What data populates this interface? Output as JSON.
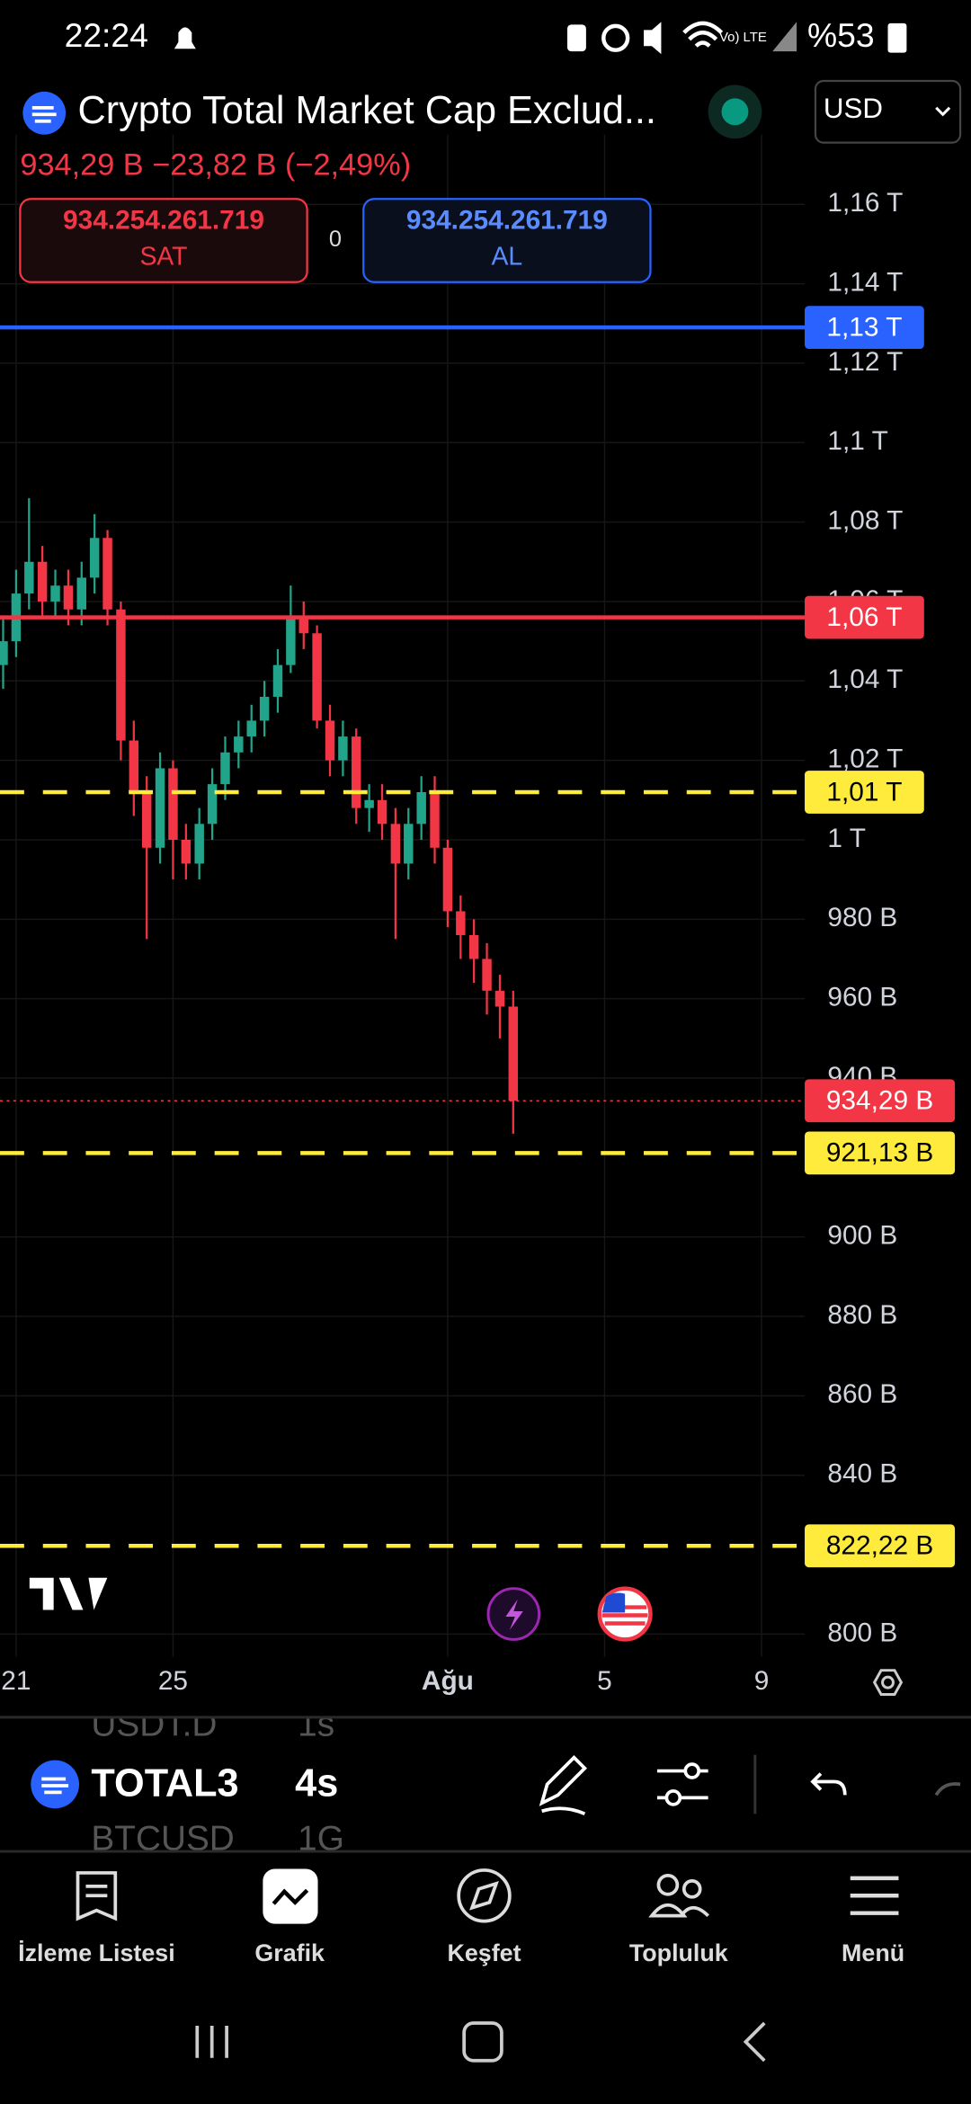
{
  "status_bar": {
    "time": "22:24",
    "battery": "%53"
  },
  "header": {
    "title": "Crypto Total Market Cap Exclud...",
    "price_change": "934,29 B  −23,82 B (−2,49%)",
    "currency": "USD"
  },
  "order": {
    "sell_price": "934.254.261.719",
    "sell_label": "SAT",
    "quantity": "0",
    "buy_price": "934.254.261.719",
    "buy_label": "AL"
  },
  "chart_data": {
    "type": "candlestick",
    "xlim": [
      20.59,
      41.1
    ],
    "xticks": [
      21,
      25,
      {
        "value": 32,
        "label": "Ağu"
      },
      {
        "value": 36,
        "label": "5"
      },
      {
        "value": 40,
        "label": "9"
      }
    ],
    "ylim": [
      800,
      1160
    ],
    "yticks": [
      {
        "value": 1160,
        "label": "1,16 T"
      },
      {
        "value": 1140,
        "label": "1,14 T"
      },
      {
        "value": 1120,
        "label": "1,12 T"
      },
      {
        "value": 1100,
        "label": "1,1 T"
      },
      {
        "value": 1080,
        "label": "1,08 T"
      },
      {
        "value": 1060,
        "label": "1,06 T"
      },
      {
        "value": 1040,
        "label": "1,04 T"
      },
      {
        "value": 1020,
        "label": "1,02 T"
      },
      {
        "value": 1000,
        "label": "1 T"
      },
      {
        "value": 980,
        "label": "980 B"
      },
      {
        "value": 960,
        "label": "960 B"
      },
      {
        "value": 940,
        "label": "940 B"
      },
      {
        "value": 900,
        "label": "900 B"
      },
      {
        "value": 880,
        "label": "880 B"
      },
      {
        "value": 860,
        "label": "860 B"
      },
      {
        "value": 840,
        "label": "840 B"
      },
      {
        "value": 800,
        "label": "800 B"
      }
    ],
    "grid": true,
    "up_color": "#22a48a",
    "down_color": "#f23645",
    "x": [
      20.67,
      21,
      21.33,
      21.67,
      22,
      22.33,
      22.67,
      23,
      23.33,
      23.67,
      24,
      24.33,
      24.67,
      25,
      25.33,
      25.67,
      26,
      26.33,
      26.67,
      27,
      27.33,
      27.67,
      28,
      28.33,
      28.67,
      29,
      29.33,
      29.67,
      30,
      30.33,
      30.67,
      31,
      31.33,
      31.67,
      32,
      32.33,
      32.67,
      33,
      33.33,
      33.67
    ],
    "open": [
      1044,
      1050,
      1062,
      1070,
      1060,
      1064,
      1058,
      1066,
      1076,
      1058,
      1025,
      1012,
      998,
      1018,
      1000,
      994,
      1004,
      1014,
      1022,
      1026,
      1030,
      1036,
      1044,
      1056,
      1052,
      1030,
      1020,
      1026,
      1008,
      1010,
      1004,
      994,
      1004,
      1012,
      998,
      982,
      976,
      970,
      962,
      958
    ],
    "high": [
      1056,
      1068,
      1086,
      1074,
      1068,
      1068,
      1070,
      1082,
      1078,
      1060,
      1030,
      1016,
      1022,
      1020,
      1004,
      1008,
      1018,
      1026,
      1030,
      1034,
      1040,
      1048,
      1064,
      1060,
      1054,
      1034,
      1030,
      1028,
      1014,
      1014,
      1008,
      1008,
      1016,
      1016,
      1000,
      986,
      980,
      974,
      966,
      962
    ],
    "low": [
      1038,
      1046,
      1058,
      1056,
      1056,
      1054,
      1054,
      1062,
      1054,
      1020,
      1006,
      975,
      994,
      990,
      990,
      990,
      1000,
      1010,
      1018,
      1022,
      1026,
      1032,
      1042,
      1048,
      1028,
      1016,
      1016,
      1004,
      1002,
      1000,
      975,
      990,
      1000,
      994,
      978,
      970,
      964,
      956,
      950,
      926
    ],
    "close": [
      1050,
      1062,
      1070,
      1060,
      1064,
      1058,
      1066,
      1076,
      1058,
      1025,
      1012,
      998,
      1018,
      1000,
      994,
      1004,
      1014,
      1022,
      1026,
      1030,
      1036,
      1044,
      1056,
      1052,
      1030,
      1020,
      1026,
      1008,
      1010,
      1004,
      994,
      1004,
      1012,
      998,
      982,
      976,
      970,
      962,
      958,
      934.29
    ],
    "levels": [
      {
        "value": 1129,
        "label": "1,13 T",
        "color": "#2962ff",
        "style": "solid"
      },
      {
        "value": 1056,
        "label": "1,06 T",
        "color": "#f23645",
        "style": "solid"
      },
      {
        "value": 1012,
        "label": "1,01 T",
        "color": "#ffeb3b",
        "style": "dashed"
      },
      {
        "value": 934.29,
        "label": "934,29 B",
        "color": "#f23645",
        "style": "dotted"
      },
      {
        "value": 921.13,
        "label": "921,13 B",
        "color": "#ffeb3b",
        "style": "dashed"
      },
      {
        "value": 822.22,
        "label": "822,22 B",
        "color": "#ffeb3b",
        "style": "dashed"
      }
    ]
  },
  "toolbar": {
    "prev_symbol": "USDT.D",
    "prev_interval": "1s",
    "symbol": "TOTAL3",
    "interval": "4s",
    "next_symbol": "BTCUSD",
    "next_interval": "1G"
  },
  "nav": {
    "items": [
      "İzleme Listesi",
      "Grafik",
      "Keşfet",
      "Topluluk",
      "Menü"
    ]
  }
}
